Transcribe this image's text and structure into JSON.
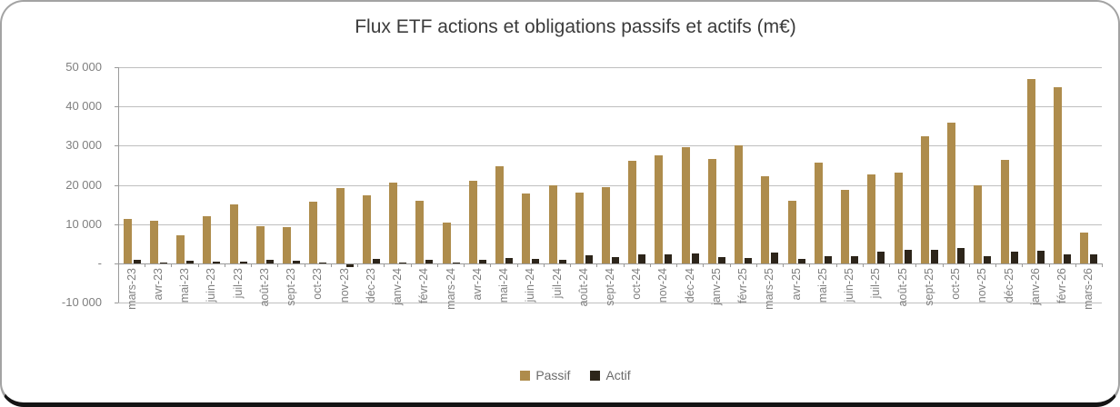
{
  "chart_data": {
    "type": "bar",
    "title": "Flux ETF actions et obligations passifs et actifs (m€)",
    "categories": [
      "mars-23",
      "avr-23",
      "mai-23",
      "juin-23",
      "juil-23",
      "août-23",
      "sept-23",
      "oct-23",
      "nov-23",
      "déc-23",
      "janv-24",
      "févr-24",
      "mars-24",
      "avr-24",
      "mai-24",
      "juin-24",
      "juil-24",
      "août-24",
      "sept-24",
      "oct-24",
      "nov-24",
      "déc-24",
      "janv-25",
      "févr-25",
      "mars-25",
      "avr-25",
      "mai-25",
      "juin-25",
      "juil-25",
      "août-25",
      "sept-25",
      "oct-25",
      "nov-25",
      "déc-25",
      "janv-26",
      "févr-26",
      "mars-26"
    ],
    "series": [
      {
        "name": "Passif",
        "color": "#ae8c4c",
        "values": [
          11200,
          10800,
          7200,
          12000,
          15100,
          9500,
          9300,
          15800,
          19300,
          17300,
          20500,
          15900,
          10500,
          21000,
          24700,
          17900,
          20000,
          18100,
          19400,
          26200,
          27500,
          29700,
          26600,
          30100,
          22200,
          16000,
          25700,
          18700,
          22600,
          23200,
          32400,
          35900,
          20000,
          26300,
          47000,
          44900,
          7900
        ]
      },
      {
        "name": "Actif",
        "color": "#2d251a",
        "values": [
          1000,
          100,
          700,
          400,
          400,
          1000,
          600,
          100,
          -700,
          1200,
          300,
          800,
          300,
          800,
          1300,
          1200,
          900,
          2000,
          1500,
          2200,
          2300,
          2500,
          1500,
          1300,
          2800,
          1100,
          1800,
          1800,
          3000,
          3400,
          3400,
          3900,
          1700,
          3000,
          3200,
          2300,
          2300
        ]
      }
    ],
    "xlabel": "",
    "ylabel": "",
    "ylim": [
      -10000,
      50000
    ],
    "grid": true,
    "legend_position": "bottom",
    "y_ticks": [
      {
        "label": "50 000",
        "value": 50000
      },
      {
        "label": "40 000",
        "value": 40000
      },
      {
        "label": "30 000",
        "value": 30000
      },
      {
        "label": "20 000",
        "value": 20000
      },
      {
        "label": "10 000",
        "value": 10000
      },
      {
        "label": "-",
        "value": 0
      },
      {
        "label": "-10 000",
        "value": -10000
      }
    ]
  },
  "colors": {
    "gridline": "#bfbfbf",
    "axis": "#9a9a9a",
    "tick_label": "#7f7f7f",
    "title_text": "#3b3b3b",
    "legend_text": "#6b6b6b",
    "frame_border": "#a3a3a3",
    "frame_bottom": "#141414"
  }
}
